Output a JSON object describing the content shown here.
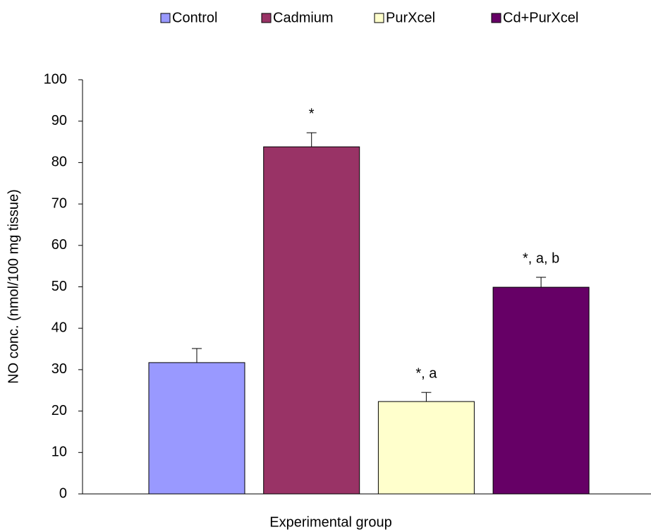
{
  "chart_data": {
    "type": "bar",
    "y_label": "NO conc. (nmol/100 mg tissue)",
    "x_label": "Experimental group",
    "categories": [
      null
    ],
    "ylim": [
      0,
      100
    ],
    "yticks": [
      0,
      10,
      20,
      30,
      40,
      50,
      60,
      70,
      80,
      90,
      100
    ],
    "series": [
      {
        "name": "Control",
        "color": "#9999ff",
        "values": [
          31.7
        ],
        "errors": [
          3.4
        ]
      },
      {
        "name": "Cadmium",
        "color": "#993366",
        "values": [
          83.8
        ],
        "errors": [
          3.4
        ],
        "annotations": [
          "*"
        ]
      },
      {
        "name": "PurXcel",
        "color": "#ffffcc",
        "values": [
          22.3
        ],
        "errors": [
          2.2
        ],
        "annotations": [
          "*, a"
        ]
      },
      {
        "name": "Cd+PurXcel",
        "color": "#660066",
        "values": [
          49.9
        ],
        "errors": [
          2.4
        ],
        "annotations": [
          "*, a, b"
        ]
      }
    ]
  }
}
